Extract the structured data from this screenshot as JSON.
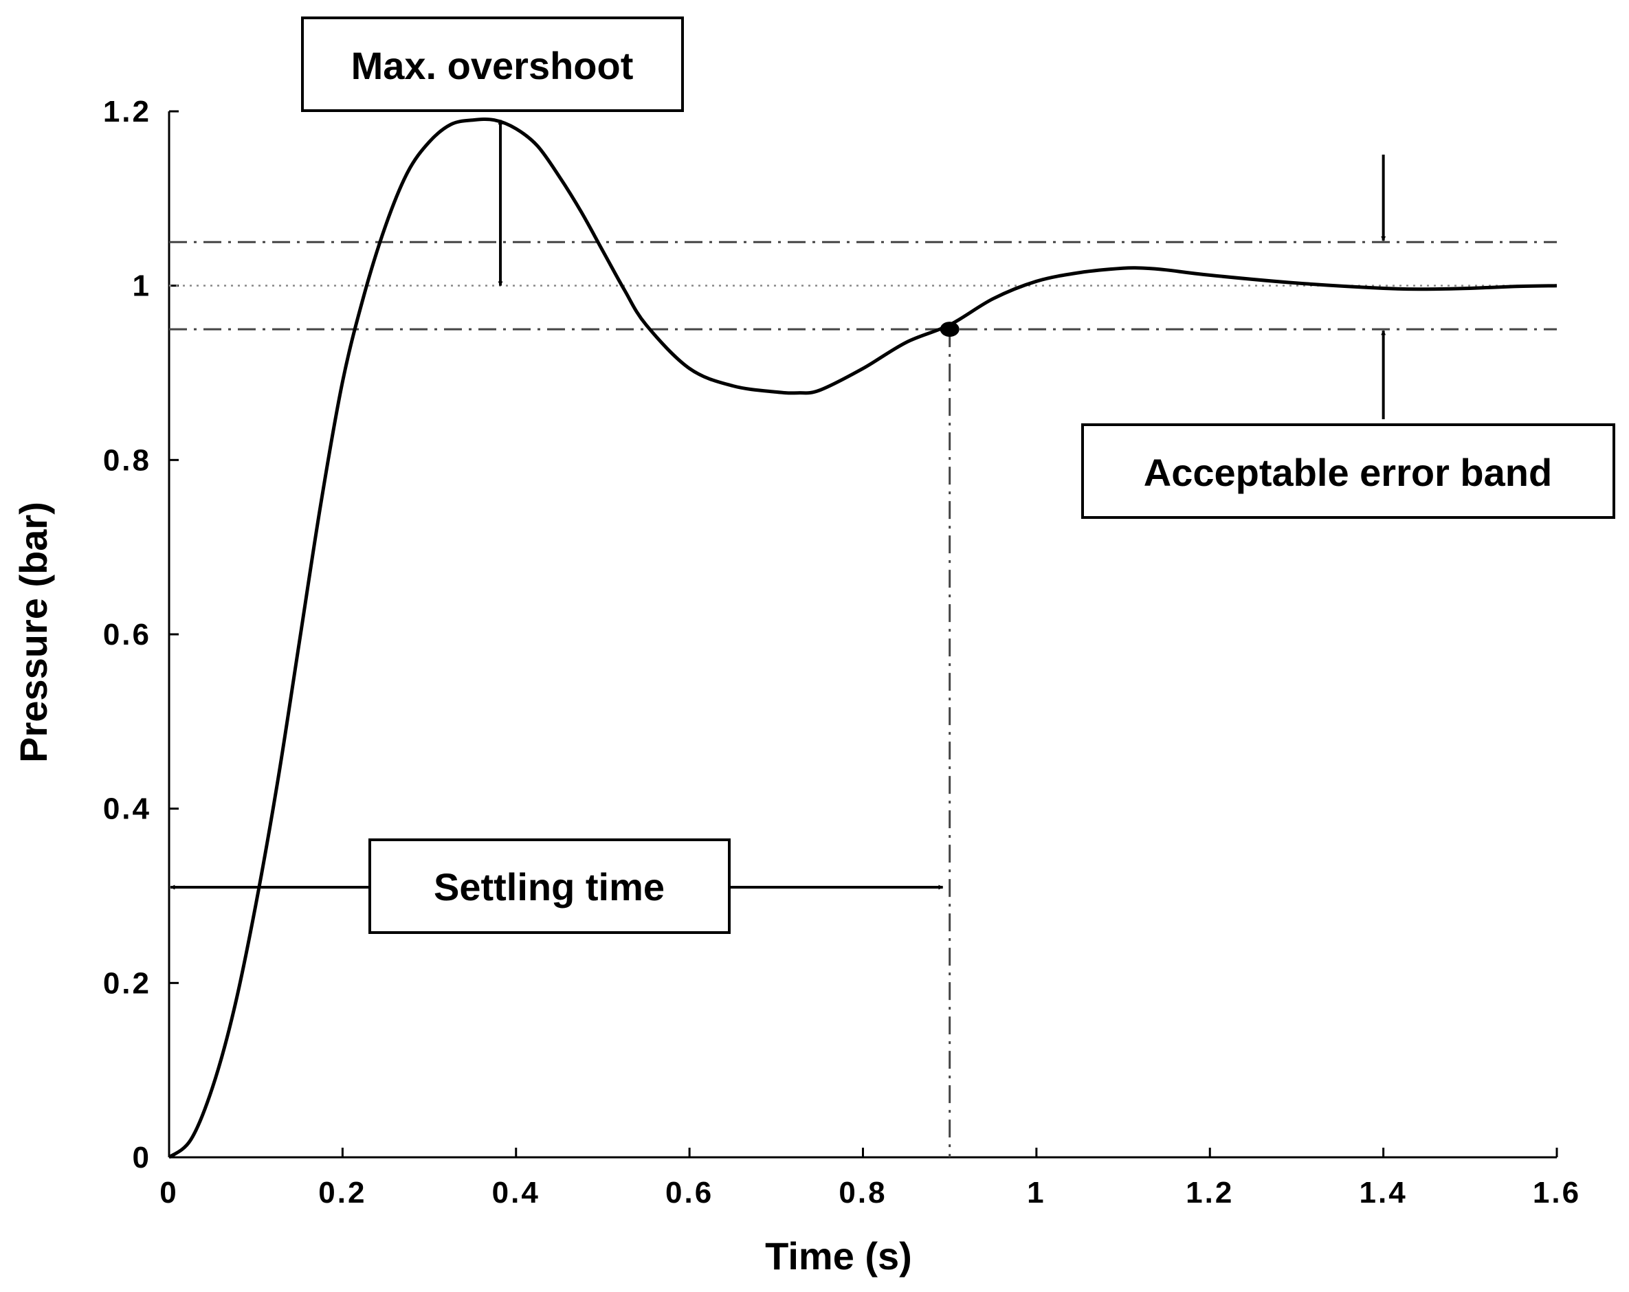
{
  "chart_data": {
    "type": "line",
    "xlabel": "Time (s)",
    "ylabel": "Pressure (bar)",
    "xlim": [
      0,
      1.6
    ],
    "ylim": [
      0,
      1.2
    ],
    "x_ticks": [
      "0",
      "0.2",
      "0.4",
      "0.6",
      "0.8",
      "1",
      "1.2",
      "1.4",
      "1.6"
    ],
    "y_ticks": [
      "0",
      "0.2",
      "0.4",
      "0.6",
      "0.8",
      "1",
      "1.2"
    ],
    "grid": false,
    "series": [
      {
        "x": [
          0,
          0.025,
          0.05,
          0.075,
          0.1,
          0.125,
          0.15,
          0.175,
          0.2,
          0.225,
          0.25,
          0.275,
          0.3,
          0.325,
          0.35,
          0.375,
          0.4,
          0.425,
          0.45,
          0.475,
          0.5,
          0.525,
          0.55,
          0.6,
          0.65,
          0.7,
          0.725,
          0.75,
          0.8,
          0.85,
          0.9,
          0.95,
          1.0,
          1.05,
          1.1,
          1.125,
          1.15,
          1.2,
          1.3,
          1.4,
          1.45,
          1.5,
          1.55,
          1.6
        ],
        "y": [
          0,
          0.02,
          0.08,
          0.17,
          0.29,
          0.43,
          0.59,
          0.75,
          0.89,
          0.99,
          1.07,
          1.13,
          1.165,
          1.185,
          1.19,
          1.19,
          1.18,
          1.16,
          1.125,
          1.085,
          1.04,
          0.995,
          0.955,
          0.905,
          0.885,
          0.878,
          0.877,
          0.88,
          0.905,
          0.935,
          0.955,
          0.985,
          1.005,
          1.015,
          1.02,
          1.02,
          1.018,
          1.012,
          1.003,
          0.997,
          0.996,
          0.997,
          0.999,
          1.0
        ]
      }
    ],
    "reference_lines": {
      "setpoint": 1.0,
      "upper_band": 1.05,
      "lower_band": 0.95,
      "settling_time": 0.9
    },
    "settling_point": {
      "x": 0.9,
      "y": 0.95
    },
    "annotations": {
      "overshoot": "Max. overshoot",
      "error_band": "Acceptable error band",
      "settling": "Settling time"
    },
    "colors": {
      "line": "#000000",
      "reference": "#444444",
      "setpoint": "#888888"
    }
  }
}
